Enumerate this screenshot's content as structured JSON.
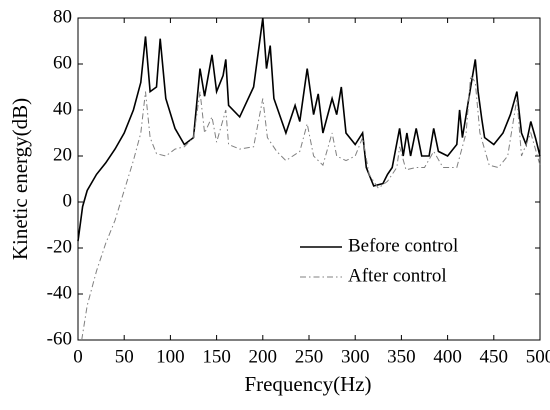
{
  "chart_data": {
    "type": "line",
    "xlabel": "Frequency(Hz)",
    "ylabel": "Kinetic energy(dB)",
    "xlim": [
      0,
      500
    ],
    "xticks": [
      0,
      50,
      100,
      150,
      200,
      250,
      300,
      350,
      400,
      450,
      500
    ],
    "ylim": [
      -60,
      80
    ],
    "yticks": [
      -60,
      -40,
      -20,
      0,
      20,
      40,
      60,
      80
    ],
    "legend": "lower right",
    "series": [
      {
        "name": "Before control",
        "color": "#000000",
        "dash": "solid",
        "x": [
          0,
          5,
          10,
          20,
          30,
          40,
          50,
          60,
          68,
          73,
          78,
          85,
          89,
          95,
          105,
          115,
          125,
          132,
          137,
          145,
          150,
          157,
          160,
          163,
          175,
          190,
          200,
          204,
          208,
          212,
          225,
          235,
          240,
          248,
          255,
          260,
          265,
          275,
          280,
          285,
          290,
          300,
          308,
          312,
          320,
          330,
          335,
          340,
          348,
          352,
          356,
          360,
          366,
          372,
          380,
          385,
          390,
          400,
          410,
          413,
          416,
          425,
          430,
          433,
          437,
          440,
          450,
          460,
          468,
          475,
          480,
          485,
          490,
          495,
          500
        ],
        "values": [
          -17,
          -2,
          5,
          12,
          17,
          23,
          30,
          40,
          52,
          72,
          48,
          50,
          71,
          45,
          32,
          25,
          28,
          58,
          46,
          64,
          48,
          55,
          62,
          42,
          37,
          50,
          80,
          58,
          68,
          45,
          30,
          42,
          35,
          58,
          38,
          47,
          30,
          45,
          38,
          50,
          30,
          25,
          30,
          15,
          7,
          8,
          12,
          15,
          32,
          20,
          30,
          20,
          32,
          20,
          20,
          32,
          22,
          20,
          25,
          40,
          28,
          50,
          62,
          48,
          36,
          28,
          25,
          30,
          38,
          48,
          30,
          25,
          35,
          28,
          20
        ]
      },
      {
        "name": "After control",
        "color": "#808080",
        "dash": "dashdot",
        "x": [
          4,
          10,
          20,
          30,
          40,
          50,
          60,
          68,
          73,
          78,
          85,
          95,
          105,
          115,
          125,
          132,
          137,
          145,
          150,
          160,
          163,
          175,
          190,
          200,
          205,
          215,
          225,
          240,
          248,
          255,
          265,
          275,
          280,
          290,
          300,
          308,
          315,
          325,
          335,
          345,
          348,
          355,
          366,
          375,
          385,
          395,
          410,
          420,
          425,
          430,
          435,
          445,
          455,
          465,
          475,
          480,
          490,
          500
        ],
        "values": [
          -60,
          -45,
          -30,
          -18,
          -8,
          5,
          18,
          30,
          48,
          28,
          21,
          20,
          23,
          24,
          28,
          48,
          30,
          37,
          26,
          40,
          25,
          23,
          24,
          45,
          28,
          22,
          18,
          22,
          34,
          20,
          16,
          30,
          20,
          18,
          20,
          28,
          12,
          6,
          9,
          15,
          24,
          14,
          15,
          15,
          22,
          15,
          15,
          30,
          55,
          52,
          30,
          16,
          15,
          20,
          45,
          20,
          30,
          16
        ]
      }
    ]
  }
}
